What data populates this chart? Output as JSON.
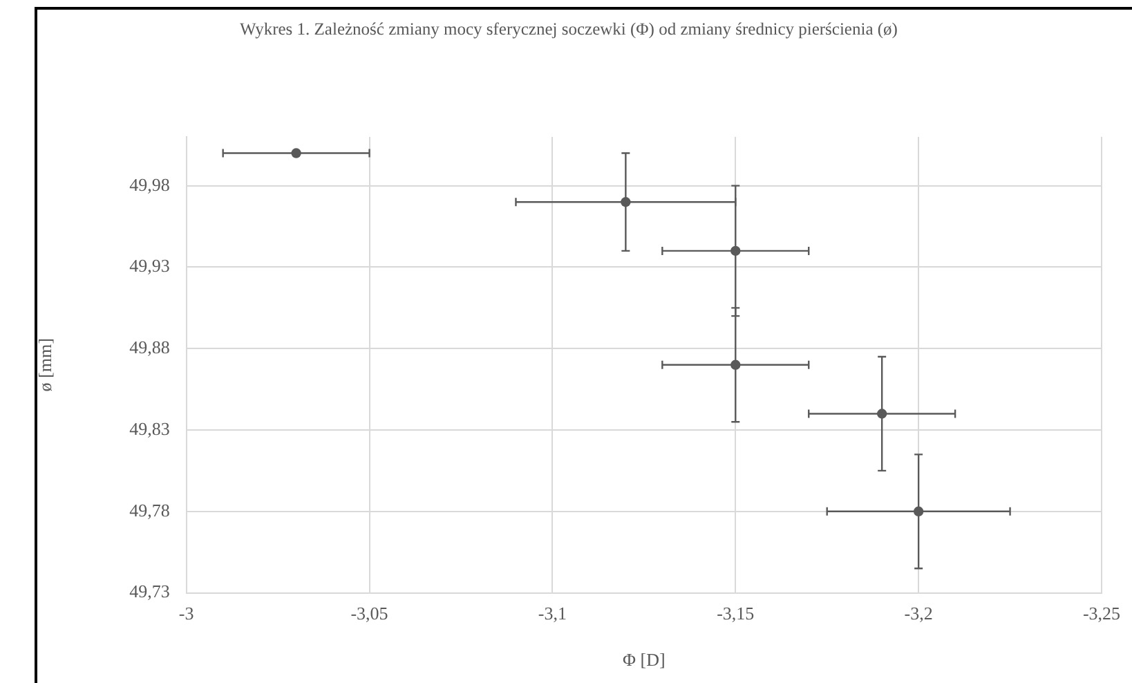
{
  "chart_data": {
    "type": "scatter",
    "title": "Wykres 1. Zależność zmiany mocy sferycznej soczewki (Φ) od zmiany średnicy pierścienia (ø)",
    "xlabel": "Φ [D]",
    "ylabel": "ø [mm]",
    "x": [
      -3.03,
      -3.12,
      -3.15,
      -3.15,
      -3.19,
      -3.2
    ],
    "series": [
      {
        "color": "#595959",
        "values": [
          50.0,
          49.97,
          49.94,
          49.87,
          49.84,
          49.78
        ],
        "errors": [
          null,
          0.03,
          0.04,
          0.035,
          0.035,
          0.035
        ],
        "xerrors": [
          0.02,
          0.03,
          0.02,
          0.02,
          0.02,
          0.025
        ]
      }
    ],
    "xlim": [
      -3,
      -3.25
    ],
    "xticks": [
      -3,
      {
        "value": -3.05,
        "label": "-3,05"
      },
      {
        "value": -3.1,
        "label": "-3,1"
      },
      {
        "value": -3.15,
        "label": "-3,15"
      },
      {
        "value": -3.2,
        "label": "-3,2"
      },
      {
        "value": -3.25,
        "label": "-3,25"
      }
    ],
    "ylim": [
      49.73,
      50.01
    ],
    "yticks": [
      {
        "value": 49.73,
        "label": "49,73"
      },
      {
        "value": 49.78,
        "label": "49,78"
      },
      {
        "value": 49.83,
        "label": "49,83"
      },
      {
        "value": 49.88,
        "label": "49,88"
      },
      {
        "value": 49.93,
        "label": "49,93"
      },
      {
        "value": 49.98,
        "label": "49,98"
      }
    ],
    "grid": true,
    "legend": false,
    "marker": "circle"
  }
}
